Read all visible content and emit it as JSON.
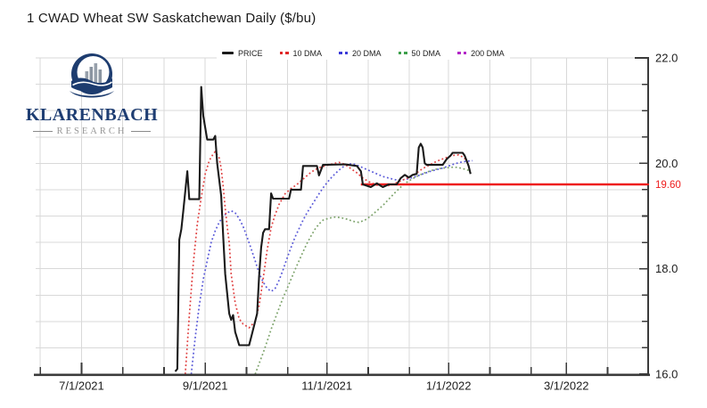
{
  "title": "1 CWAD Wheat SW Saskatchewan Daily ($/bu)",
  "logo": {
    "name": "KLARENBACH",
    "subtitle": "RESEARCH"
  },
  "legend": [
    {
      "id": "price",
      "label": "PRICE",
      "color": "#1a1a1a",
      "swatch": "line"
    },
    {
      "id": "dma10",
      "label": "10 DMA",
      "color": "#e02828",
      "swatch": "dots"
    },
    {
      "id": "dma20",
      "label": "20 DMA",
      "color": "#3a3ad8",
      "swatch": "dots"
    },
    {
      "id": "dma50",
      "label": "50 DMA",
      "color": "#3da04b",
      "swatch": "dots"
    },
    {
      "id": "dma200",
      "label": "200 DMA",
      "color": "#b428c8",
      "swatch": "dots"
    }
  ],
  "chart_data": {
    "type": "line",
    "title": "1 CWAD Wheat SW Saskatchewan Daily ($/bu)",
    "x_domain": [
      "2021-06-08",
      "2022-04-11"
    ],
    "ylim": [
      16.0,
      22.0
    ],
    "y_minor_step": 0.5,
    "grid": true,
    "grid_color": "#d9d9d9",
    "axis_color": "#3b3b3b",
    "legend_position": "top",
    "y_labels": [
      {
        "value": 22.0,
        "label": "22.0"
      },
      {
        "value": 20.0,
        "label": "20.0"
      },
      {
        "value": 18.0,
        "label": "18.0"
      },
      {
        "value": 16.0,
        "label": "16.0"
      }
    ],
    "x_labels": [
      {
        "date": "2021-07-01",
        "label": "7/1/2021"
      },
      {
        "date": "2021-09-01",
        "label": "9/1/2021"
      },
      {
        "date": "2021-11-01",
        "label": "11/1/2021"
      },
      {
        "date": "2022-01-01",
        "label": "1/1/2022"
      },
      {
        "date": "2022-03-01",
        "label": "3/1/2022"
      }
    ],
    "annotation": {
      "label": "19.60",
      "value": 19.6,
      "start": "2021-11-18",
      "color": "#ee1c1c"
    },
    "series": [
      {
        "name": "50 DMA",
        "style": "dots",
        "color": "#7da36b",
        "points": [
          [
            "2021-09-26",
            16.0
          ],
          [
            "2021-09-28",
            16.2
          ],
          [
            "2021-09-30",
            16.4
          ],
          [
            "2021-10-02",
            16.62
          ],
          [
            "2021-10-04",
            16.85
          ],
          [
            "2021-10-06",
            17.05
          ],
          [
            "2021-10-08",
            17.25
          ],
          [
            "2021-10-10",
            17.45
          ],
          [
            "2021-10-12",
            17.62
          ],
          [
            "2021-10-14",
            17.8
          ],
          [
            "2021-10-16",
            17.98
          ],
          [
            "2021-10-18",
            18.15
          ],
          [
            "2021-10-20",
            18.32
          ],
          [
            "2021-10-22",
            18.48
          ],
          [
            "2021-10-24",
            18.62
          ],
          [
            "2021-10-26",
            18.75
          ],
          [
            "2021-10-28",
            18.85
          ],
          [
            "2021-10-30",
            18.92
          ],
          [
            "2021-11-02",
            18.96
          ],
          [
            "2021-11-05",
            18.98
          ],
          [
            "2021-11-08",
            18.97
          ],
          [
            "2021-11-11",
            18.94
          ],
          [
            "2021-11-14",
            18.9
          ],
          [
            "2021-11-17",
            18.88
          ],
          [
            "2021-11-20",
            18.92
          ],
          [
            "2021-11-23",
            19.0
          ],
          [
            "2021-11-26",
            19.1
          ],
          [
            "2021-11-29",
            19.2
          ],
          [
            "2021-12-02",
            19.32
          ],
          [
            "2021-12-05",
            19.44
          ],
          [
            "2021-12-08",
            19.55
          ],
          [
            "2021-12-11",
            19.64
          ],
          [
            "2021-12-14",
            19.71
          ],
          [
            "2021-12-17",
            19.77
          ],
          [
            "2021-12-20",
            19.82
          ],
          [
            "2021-12-23",
            19.86
          ],
          [
            "2021-12-26",
            19.89
          ],
          [
            "2021-12-29",
            19.91
          ],
          [
            "2022-01-01",
            19.92
          ],
          [
            "2022-01-04",
            19.93
          ],
          [
            "2022-01-07",
            19.91
          ],
          [
            "2022-01-10",
            19.88
          ],
          [
            "2022-01-12",
            19.85
          ]
        ]
      },
      {
        "name": "20 DMA",
        "style": "dots",
        "color": "#5858d8",
        "points": [
          [
            "2021-08-25",
            16.0
          ],
          [
            "2021-08-27",
            16.7
          ],
          [
            "2021-08-29",
            17.3
          ],
          [
            "2021-08-31",
            17.8
          ],
          [
            "2021-09-02",
            18.15
          ],
          [
            "2021-09-04",
            18.5
          ],
          [
            "2021-09-06",
            18.72
          ],
          [
            "2021-09-08",
            18.88
          ],
          [
            "2021-09-10",
            19.0
          ],
          [
            "2021-09-12",
            19.06
          ],
          [
            "2021-09-14",
            19.1
          ],
          [
            "2021-09-16",
            19.06
          ],
          [
            "2021-09-18",
            18.95
          ],
          [
            "2021-09-20",
            18.8
          ],
          [
            "2021-09-22",
            18.6
          ],
          [
            "2021-09-24",
            18.38
          ],
          [
            "2021-09-26",
            18.15
          ],
          [
            "2021-09-28",
            17.92
          ],
          [
            "2021-09-30",
            17.75
          ],
          [
            "2021-10-02",
            17.63
          ],
          [
            "2021-10-04",
            17.57
          ],
          [
            "2021-10-06",
            17.62
          ],
          [
            "2021-10-08",
            17.78
          ],
          [
            "2021-10-10",
            17.98
          ],
          [
            "2021-10-12",
            18.2
          ],
          [
            "2021-10-14",
            18.4
          ],
          [
            "2021-10-16",
            18.6
          ],
          [
            "2021-10-18",
            18.76
          ],
          [
            "2021-10-20",
            18.92
          ],
          [
            "2021-10-22",
            19.06
          ],
          [
            "2021-10-24",
            19.18
          ],
          [
            "2021-10-26",
            19.3
          ],
          [
            "2021-10-28",
            19.42
          ],
          [
            "2021-10-30",
            19.53
          ],
          [
            "2021-11-01",
            19.63
          ],
          [
            "2021-11-03",
            19.72
          ],
          [
            "2021-11-05",
            19.8
          ],
          [
            "2021-11-07",
            19.87
          ],
          [
            "2021-11-09",
            19.93
          ],
          [
            "2021-11-11",
            19.97
          ],
          [
            "2021-11-13",
            19.99
          ],
          [
            "2021-11-15",
            19.98
          ],
          [
            "2021-11-17",
            19.95
          ],
          [
            "2021-11-20",
            19.9
          ],
          [
            "2021-11-23",
            19.85
          ],
          [
            "2021-11-26",
            19.8
          ],
          [
            "2021-11-29",
            19.75
          ],
          [
            "2021-12-02",
            19.72
          ],
          [
            "2021-12-05",
            19.69
          ],
          [
            "2021-12-08",
            19.68
          ],
          [
            "2021-12-11",
            19.7
          ],
          [
            "2021-12-14",
            19.73
          ],
          [
            "2021-12-17",
            19.77
          ],
          [
            "2021-12-20",
            19.81
          ],
          [
            "2021-12-23",
            19.85
          ],
          [
            "2021-12-26",
            19.88
          ],
          [
            "2021-12-29",
            19.91
          ],
          [
            "2022-01-01",
            19.95
          ],
          [
            "2022-01-04",
            19.99
          ],
          [
            "2022-01-07",
            20.02
          ],
          [
            "2022-01-10",
            20.04
          ],
          [
            "2022-01-13",
            20.05
          ]
        ]
      },
      {
        "name": "10 DMA",
        "style": "dots",
        "color": "#e04040",
        "points": [
          [
            "2021-08-22",
            16.0
          ],
          [
            "2021-08-24",
            17.1
          ],
          [
            "2021-08-26",
            18.1
          ],
          [
            "2021-08-28",
            18.85
          ],
          [
            "2021-08-30",
            19.35
          ],
          [
            "2021-09-01",
            19.8
          ],
          [
            "2021-09-03",
            20.05
          ],
          [
            "2021-09-05",
            20.18
          ],
          [
            "2021-09-06",
            20.22
          ],
          [
            "2021-09-08",
            20.1
          ],
          [
            "2021-09-09",
            19.9
          ],
          [
            "2021-09-10",
            19.55
          ],
          [
            "2021-09-11",
            19.15
          ],
          [
            "2021-09-12",
            18.8
          ],
          [
            "2021-09-13",
            18.5
          ],
          [
            "2021-09-14",
            17.9
          ],
          [
            "2021-09-16",
            17.35
          ],
          [
            "2021-09-18",
            17.05
          ],
          [
            "2021-09-20",
            16.95
          ],
          [
            "2021-09-23",
            16.88
          ],
          [
            "2021-09-26",
            17.0
          ],
          [
            "2021-09-28",
            17.3
          ],
          [
            "2021-09-30",
            17.8
          ],
          [
            "2021-10-02",
            18.35
          ],
          [
            "2021-10-04",
            18.78
          ],
          [
            "2021-10-06",
            19.02
          ],
          [
            "2021-10-08",
            19.22
          ],
          [
            "2021-10-11",
            19.42
          ],
          [
            "2021-10-14",
            19.52
          ],
          [
            "2021-10-17",
            19.6
          ],
          [
            "2021-10-20",
            19.7
          ],
          [
            "2021-10-23",
            19.8
          ],
          [
            "2021-10-26",
            19.88
          ],
          [
            "2021-10-29",
            19.93
          ],
          [
            "2021-11-01",
            19.96
          ],
          [
            "2021-11-04",
            19.99
          ],
          [
            "2021-11-07",
            20.02
          ],
          [
            "2021-11-10",
            19.98
          ],
          [
            "2021-11-13",
            19.9
          ],
          [
            "2021-11-16",
            19.82
          ],
          [
            "2021-11-19",
            19.72
          ],
          [
            "2021-11-22",
            19.65
          ],
          [
            "2021-11-25",
            19.6
          ],
          [
            "2021-11-28",
            19.57
          ],
          [
            "2021-12-01",
            19.57
          ],
          [
            "2021-12-04",
            19.6
          ],
          [
            "2021-12-07",
            19.65
          ],
          [
            "2021-12-10",
            19.7
          ],
          [
            "2021-12-13",
            19.75
          ],
          [
            "2021-12-16",
            19.82
          ],
          [
            "2021-12-19",
            19.9
          ],
          [
            "2021-12-22",
            19.96
          ],
          [
            "2021-12-25",
            20.02
          ],
          [
            "2021-12-28",
            20.07
          ],
          [
            "2021-12-31",
            20.11
          ],
          [
            "2022-01-03",
            20.15
          ],
          [
            "2022-01-06",
            20.16
          ],
          [
            "2022-01-08",
            20.12
          ],
          [
            "2022-01-10",
            20.06
          ]
        ]
      },
      {
        "name": "PRICE",
        "style": "solid",
        "color": "#1a1a1a",
        "points": [
          [
            "2021-08-17",
            16.05
          ],
          [
            "2021-08-18",
            16.1
          ],
          [
            "2021-08-19",
            18.55
          ],
          [
            "2021-08-20",
            18.75
          ],
          [
            "2021-08-21",
            19.1
          ],
          [
            "2021-08-23",
            19.85
          ],
          [
            "2021-08-24",
            19.32
          ],
          [
            "2021-08-29",
            19.32
          ],
          [
            "2021-08-30",
            21.45
          ],
          [
            "2021-08-31",
            20.9
          ],
          [
            "2021-09-02",
            20.45
          ],
          [
            "2021-09-05",
            20.45
          ],
          [
            "2021-09-06",
            20.52
          ],
          [
            "2021-09-07",
            20.0
          ],
          [
            "2021-09-09",
            19.38
          ],
          [
            "2021-09-10",
            18.6
          ],
          [
            "2021-09-11",
            17.9
          ],
          [
            "2021-09-13",
            17.15
          ],
          [
            "2021-09-14",
            17.03
          ],
          [
            "2021-09-15",
            17.12
          ],
          [
            "2021-09-16",
            16.8
          ],
          [
            "2021-09-17",
            16.68
          ],
          [
            "2021-09-18",
            16.55
          ],
          [
            "2021-09-23",
            16.55
          ],
          [
            "2021-09-24",
            16.7
          ],
          [
            "2021-09-26",
            17.0
          ],
          [
            "2021-09-27",
            17.15
          ],
          [
            "2021-09-28",
            17.85
          ],
          [
            "2021-09-29",
            18.4
          ],
          [
            "2021-09-30",
            18.68
          ],
          [
            "2021-10-01",
            18.75
          ],
          [
            "2021-10-03",
            18.75
          ],
          [
            "2021-10-04",
            19.43
          ],
          [
            "2021-10-05",
            19.33
          ],
          [
            "2021-10-13",
            19.33
          ],
          [
            "2021-10-14",
            19.5
          ],
          [
            "2021-10-19",
            19.5
          ],
          [
            "2021-10-20",
            19.95
          ],
          [
            "2021-10-27",
            19.95
          ],
          [
            "2021-10-28",
            19.77
          ],
          [
            "2021-10-30",
            19.97
          ],
          [
            "2021-11-10",
            19.98
          ],
          [
            "2021-11-16",
            19.95
          ],
          [
            "2021-11-18",
            19.85
          ],
          [
            "2021-11-19",
            19.6
          ],
          [
            "2021-11-23",
            19.55
          ],
          [
            "2021-11-26",
            19.62
          ],
          [
            "2021-11-29",
            19.55
          ],
          [
            "2021-12-02",
            19.6
          ],
          [
            "2021-12-06",
            19.6
          ],
          [
            "2021-12-08",
            19.72
          ],
          [
            "2021-12-10",
            19.78
          ],
          [
            "2021-12-12",
            19.73
          ],
          [
            "2021-12-14",
            19.78
          ],
          [
            "2021-12-16",
            19.8
          ],
          [
            "2021-12-17",
            20.3
          ],
          [
            "2021-12-18",
            20.37
          ],
          [
            "2021-12-19",
            20.3
          ],
          [
            "2021-12-20",
            20.0
          ],
          [
            "2021-12-21",
            19.97
          ],
          [
            "2021-12-29",
            19.97
          ],
          [
            "2021-12-31",
            20.08
          ],
          [
            "2022-01-02",
            20.15
          ],
          [
            "2022-01-03",
            20.2
          ],
          [
            "2022-01-08",
            20.2
          ],
          [
            "2022-01-09",
            20.15
          ],
          [
            "2022-01-10",
            20.05
          ],
          [
            "2022-01-11",
            19.95
          ],
          [
            "2022-01-12",
            19.8
          ]
        ]
      },
      {
        "name": "200 DMA",
        "style": "dots",
        "color": "#b428c8",
        "points": []
      }
    ]
  }
}
